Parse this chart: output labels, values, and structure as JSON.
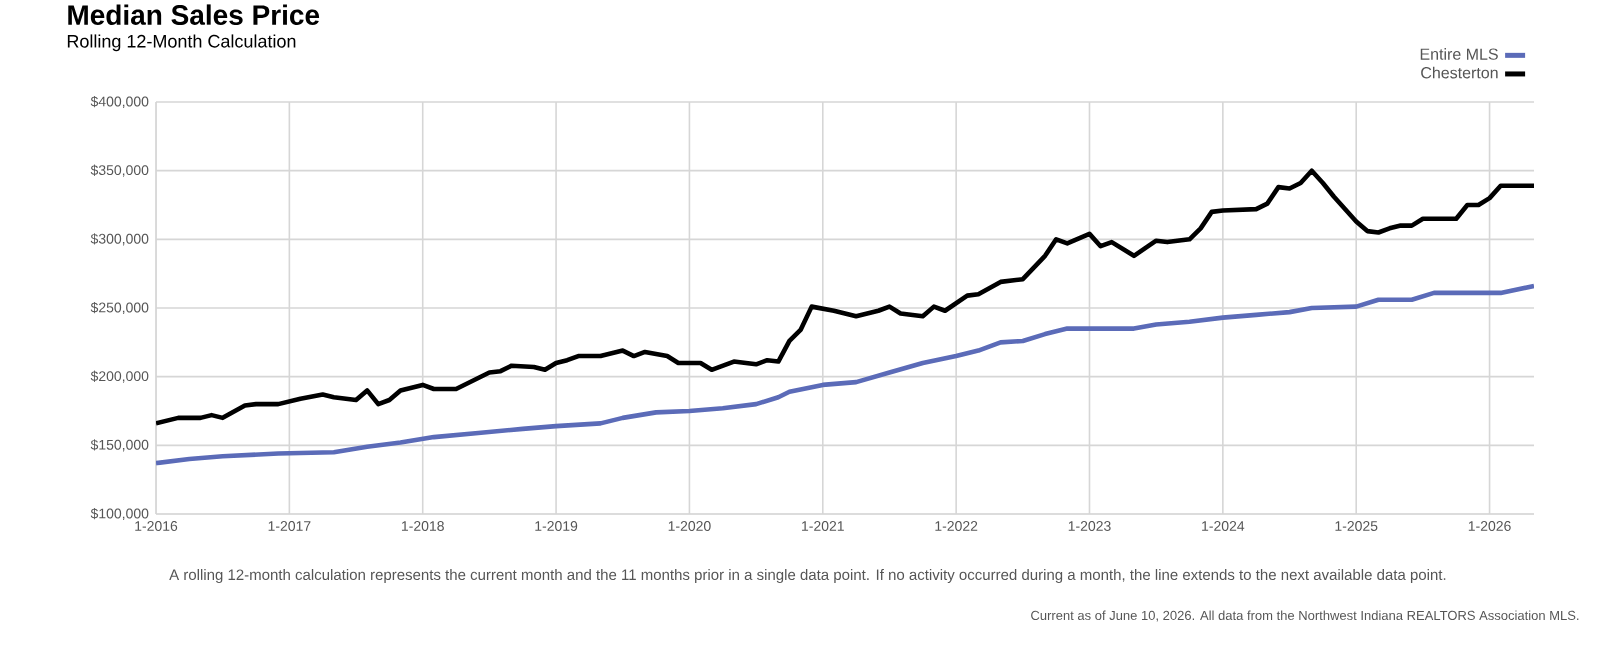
{
  "chart_data": {
    "type": "line",
    "title": "Median Sales Price",
    "subtitle": "Rolling 12-Month Calculation",
    "annotations": [
      "A rolling 12-month calculation represents the current month and the 11 months prior in a single data point. If no activity occurred during a month, the line extends to the next available data point.",
      "Current as of June 10, 2026. All data from the Northwest Indiana REALTORS Association MLS."
    ],
    "xlim": [
      "2016-01",
      "2026-05"
    ],
    "xticks": [
      {
        "value": "2016-01",
        "label": "1-2016"
      },
      {
        "value": "2017-01",
        "label": "1-2017"
      },
      {
        "value": "2018-01",
        "label": "1-2018"
      },
      {
        "value": "2019-01",
        "label": "1-2019"
      },
      {
        "value": "2020-01",
        "label": "1-2020"
      },
      {
        "value": "2021-01",
        "label": "1-2021"
      },
      {
        "value": "2022-01",
        "label": "1-2022"
      },
      {
        "value": "2023-01",
        "label": "1-2023"
      },
      {
        "value": "2024-01",
        "label": "1-2024"
      },
      {
        "value": "2025-01",
        "label": "1-2025"
      },
      {
        "value": "2026-01",
        "label": "1-2026"
      }
    ],
    "ylim": [
      100000,
      400000
    ],
    "yticks": [
      {
        "value": 100000,
        "label": "$100,000"
      },
      {
        "value": 150000,
        "label": "$150,000"
      },
      {
        "value": 200000,
        "label": "$200,000"
      },
      {
        "value": 250000,
        "label": "$250,000"
      },
      {
        "value": 300000,
        "label": "$300,000"
      },
      {
        "value": 350000,
        "label": "$350,000"
      },
      {
        "value": 400000,
        "label": "$400,000"
      }
    ],
    "grid": true,
    "legend": "top right",
    "series": [
      {
        "name": "Entire MLS",
        "color": "#5b6bb8",
        "x": [
          "2016-01",
          "2016-04",
          "2016-07",
          "2016-12",
          "2017-05",
          "2017-08",
          "2017-11",
          "2018-02",
          "2018-06",
          "2018-10",
          "2019-01",
          "2019-05",
          "2019-07",
          "2019-10",
          "2020-01",
          "2020-04",
          "2020-07",
          "2020-09",
          "2020-10",
          "2021-01",
          "2021-04",
          "2021-07",
          "2021-10",
          "2022-01",
          "2022-03",
          "2022-05",
          "2022-07",
          "2022-09",
          "2022-11",
          "2023-01",
          "2023-05",
          "2023-07",
          "2023-10",
          "2024-01",
          "2024-04",
          "2024-07",
          "2024-09",
          "2025-01",
          "2025-03",
          "2025-06",
          "2025-08",
          "2026-02",
          "2026-05"
        ],
        "values": [
          137000,
          140000,
          142000,
          144000,
          145000,
          149000,
          152000,
          156000,
          159000,
          162000,
          164000,
          166000,
          170000,
          174000,
          175000,
          177000,
          180000,
          185000,
          189000,
          194000,
          196000,
          203000,
          210000,
          215000,
          219000,
          225000,
          226000,
          231000,
          235000,
          235000,
          235000,
          238000,
          240000,
          243000,
          245000,
          247000,
          250000,
          251000,
          256000,
          256000,
          261000,
          261000,
          266000
        ]
      },
      {
        "name": "Chesterton",
        "color": "#000000",
        "x": [
          "2016-01",
          "2016-03",
          "2016-05",
          "2016-06",
          "2016-07",
          "2016-09",
          "2016-10",
          "2016-12",
          "2017-02",
          "2017-04",
          "2017-05",
          "2017-07",
          "2017-08",
          "2017-09",
          "2017-10",
          "2017-11",
          "2018-01",
          "2018-02",
          "2018-04",
          "2018-06",
          "2018-07",
          "2018-08",
          "2018-09",
          "2018-11",
          "2018-12",
          "2019-01",
          "2019-02",
          "2019-03",
          "2019-05",
          "2019-06",
          "2019-07",
          "2019-08",
          "2019-09",
          "2019-11",
          "2019-12",
          "2020-02",
          "2020-03",
          "2020-05",
          "2020-07",
          "2020-08",
          "2020-09",
          "2020-10",
          "2020-11",
          "2020-12",
          "2021-02",
          "2021-04",
          "2021-06",
          "2021-07",
          "2021-08",
          "2021-10",
          "2021-11",
          "2021-12",
          "2022-02",
          "2022-03",
          "2022-05",
          "2022-07",
          "2022-09",
          "2022-10",
          "2022-11",
          "2023-01",
          "2023-02",
          "2023-03",
          "2023-05",
          "2023-07",
          "2023-08",
          "2023-10",
          "2023-11",
          "2023-12",
          "2024-01",
          "2024-04",
          "2024-05",
          "2024-06",
          "2024-07",
          "2024-08",
          "2024-09",
          "2024-10",
          "2024-11",
          "2025-01",
          "2025-02",
          "2025-03",
          "2025-04",
          "2025-05",
          "2025-06",
          "2025-07",
          "2025-09",
          "2025-10",
          "2025-11",
          "2025-12",
          "2026-01",
          "2026-02",
          "2026-05"
        ],
        "values": [
          166000,
          170000,
          170000,
          172000,
          170000,
          179000,
          180000,
          180000,
          184000,
          187000,
          185000,
          183000,
          190000,
          180000,
          183000,
          190000,
          194000,
          191000,
          191000,
          199000,
          203000,
          204000,
          208000,
          207000,
          205000,
          210000,
          212000,
          215000,
          215000,
          217000,
          219000,
          215000,
          218000,
          215000,
          210000,
          210000,
          205000,
          211000,
          209000,
          212000,
          211000,
          226000,
          234000,
          251000,
          248000,
          244000,
          248000,
          251000,
          246000,
          244000,
          251000,
          248000,
          259000,
          260000,
          269000,
          271000,
          288000,
          300000,
          297000,
          304000,
          295000,
          298000,
          288000,
          299000,
          298000,
          300000,
          308000,
          320000,
          321000,
          322000,
          326000,
          338000,
          337000,
          341000,
          350000,
          341000,
          331000,
          313000,
          306000,
          305000,
          308000,
          310000,
          310000,
          315000,
          315000,
          315000,
          325000,
          325000,
          330000,
          339000,
          339000
        ]
      }
    ]
  }
}
